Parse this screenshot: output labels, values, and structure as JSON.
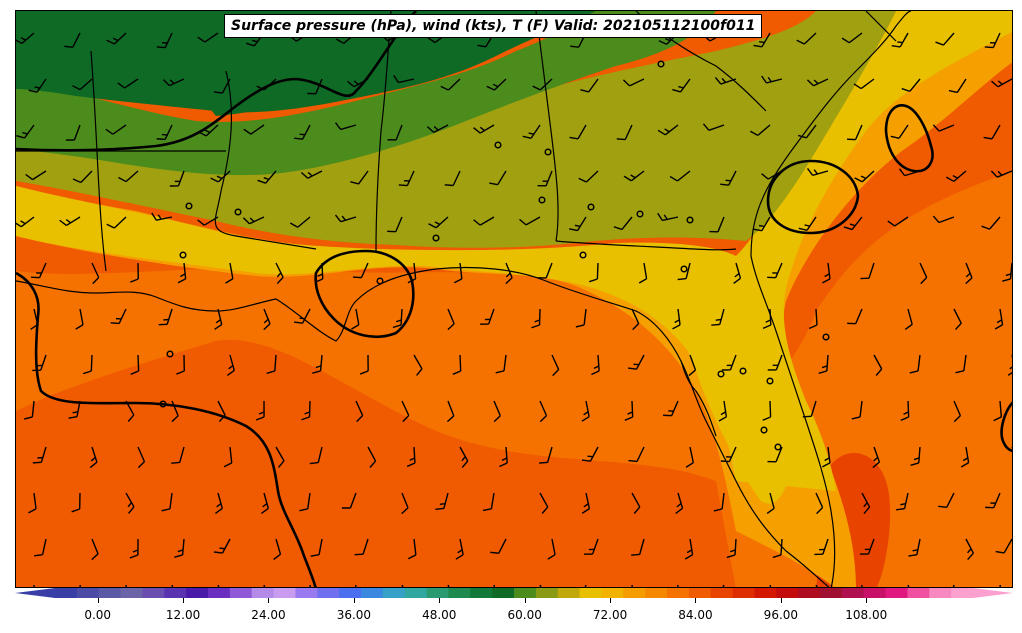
{
  "title": "Surface pressure (hPa), wind (kts), T (F) Valid: 202105112100f011",
  "colorbar": {
    "tick_labels": [
      "0.00",
      "12.00",
      "24.00",
      "36.00",
      "48.00",
      "60.00",
      "72.00",
      "84.00",
      "96.00",
      "108.00"
    ],
    "min": -6,
    "max": 123,
    "extend": "both",
    "colors": [
      "#3a3fa8",
      "#4b4ca6",
      "#5b5aa6",
      "#6c64a8",
      "#6b4fb0",
      "#5a34b0",
      "#4a1aa8",
      "#6a2fc0",
      "#8e5ad8",
      "#b38ae8",
      "#c99cf0",
      "#9a7af0",
      "#6f6ff0",
      "#4a70f0",
      "#3a88e0",
      "#35a0c8",
      "#30a8a0",
      "#2a9a70",
      "#1f8a50",
      "#127a38",
      "#0e6a24",
      "#4c8c1c",
      "#8a9a14",
      "#c0a80c",
      "#e8c000",
      "#f2b200",
      "#f59c00",
      "#f68800",
      "#f57200",
      "#f05a00",
      "#e84400",
      "#de2e00",
      "#d41800",
      "#c40c0c",
      "#b00c20",
      "#a01030",
      "#b01050",
      "#c81068",
      "#e01880",
      "#f050a0",
      "#f888c0",
      "#fca0d0"
    ]
  },
  "map": {
    "region": "Southeastern United States and Gulf of Mexico",
    "field_colors": {
      "high_50s": "#0e6a24",
      "low_60s": "#4c8c1c",
      "mid_60s": "#a0a010",
      "upper_60s": "#e8c000",
      "low_70s": "#f5a000",
      "mid_70s": "#f57200",
      "upper_70s": "#f05a00",
      "low_80s": "#e84400"
    },
    "isobar_color": "#000000",
    "wind_barb_color": "#000000"
  }
}
